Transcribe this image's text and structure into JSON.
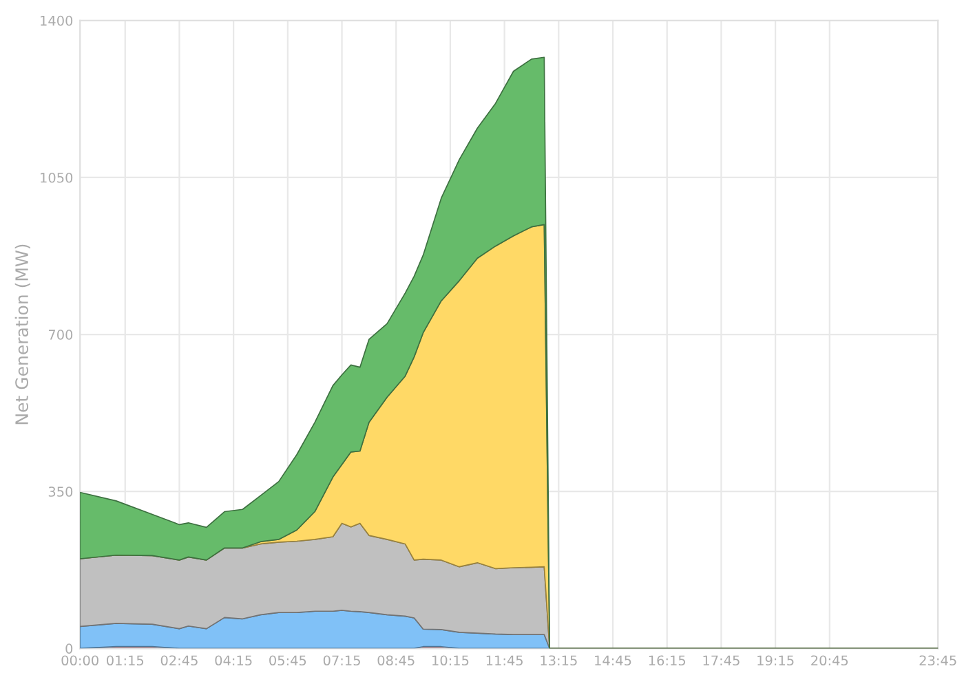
{
  "chart_data": {
    "type": "area",
    "stacked": true,
    "ylabel": "Net Generation (MW)",
    "x": [
      0,
      1,
      2,
      2.75,
      3,
      3.5,
      4,
      4.5,
      5,
      5.5,
      6,
      6.5,
      7,
      7.25,
      7.5,
      7.75,
      8,
      8.5,
      9,
      9.25,
      9.5,
      10,
      10.5,
      11,
      11.5,
      12,
      12.5,
      12.85,
      13,
      23.75
    ],
    "series": [
      {
        "color": "#e57373",
        "values": [
          0,
          4,
          4,
          0,
          0,
          0,
          0,
          0,
          0,
          0,
          0,
          0,
          0,
          0,
          0,
          0,
          0,
          0,
          0,
          0,
          4,
          4,
          0,
          0,
          0,
          0,
          0,
          0,
          0,
          0
        ]
      },
      {
        "color": "#80c1f7",
        "values": [
          49,
          52,
          50,
          44,
          50,
          44,
          69,
          66,
          75,
          80,
          80,
          83,
          83,
          85,
          83,
          82,
          80,
          75,
          72,
          68,
          39,
          38,
          36,
          34,
          32,
          31,
          31,
          31,
          0,
          0
        ]
      },
      {
        "color": "#c0c0c0",
        "values": [
          151,
          152,
          153,
          153,
          154,
          153,
          155,
          158,
          158,
          157,
          159,
          160,
          166,
          194,
          188,
          197,
          172,
          168,
          161,
          129,
          156,
          155,
          146,
          157,
          146,
          149,
          150,
          151,
          0,
          0
        ]
      },
      {
        "color": "#ffd966",
        "values": [
          0,
          0,
          0,
          0,
          0,
          0,
          0,
          0,
          5,
          6,
          25,
          62,
          133,
          131,
          167,
          161,
          252,
          317,
          374,
          453,
          505,
          578,
          638,
          679,
          719,
          740,
          759,
          763,
          0,
          0
        ]
      },
      {
        "color": "#66bb6a",
        "values": [
          148,
          121,
          92,
          79,
          76,
          73,
          81,
          86,
          103,
          129,
          168,
          199,
          204,
          200,
          194,
          187,
          185,
          164,
          185,
          180,
          173,
          229,
          270,
          290,
          318,
          367,
          374,
          373,
          0,
          0
        ]
      }
    ],
    "xlim": [
      0,
      23.75
    ],
    "ylim": [
      0,
      1400
    ],
    "xticks": [
      {
        "value": 0,
        "label": "00:00"
      },
      {
        "value": 1.25,
        "label": "01:15"
      },
      {
        "value": 2.75,
        "label": "02:45"
      },
      {
        "value": 4.25,
        "label": "04:15"
      },
      {
        "value": 5.75,
        "label": "05:45"
      },
      {
        "value": 7.25,
        "label": "07:15"
      },
      {
        "value": 8.75,
        "label": "08:45"
      },
      {
        "value": 10.25,
        "label": "10:15"
      },
      {
        "value": 11.75,
        "label": "11:45"
      },
      {
        "value": 13.25,
        "label": "13:15"
      },
      {
        "value": 14.75,
        "label": "14:45"
      },
      {
        "value": 16.25,
        "label": "16:15"
      },
      {
        "value": 17.75,
        "label": "17:45"
      },
      {
        "value": 19.25,
        "label": "19:15"
      },
      {
        "value": 20.75,
        "label": "20:45"
      },
      {
        "value": 23.75,
        "label": "23:45"
      }
    ],
    "yticks": [
      0,
      350,
      700,
      1050,
      1400
    ],
    "grid": true
  }
}
